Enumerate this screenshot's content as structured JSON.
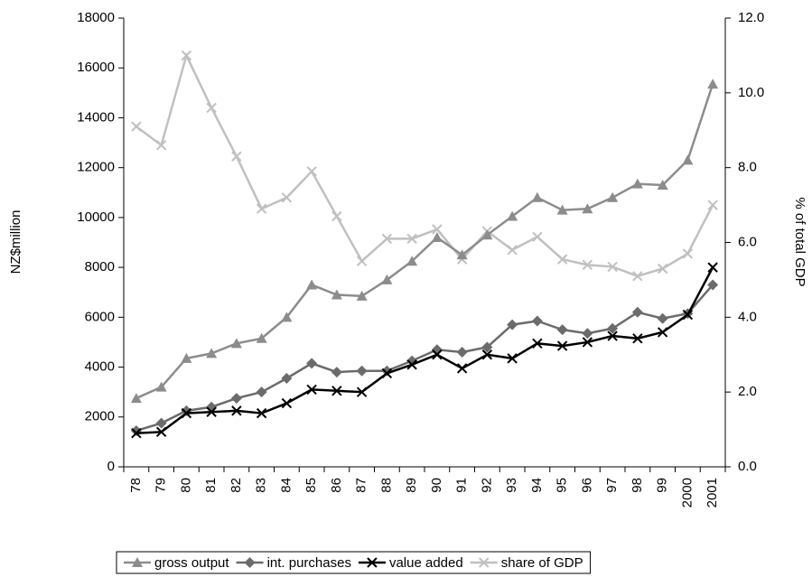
{
  "chart_data": {
    "type": "line",
    "y_label": "NZ$million",
    "y2_label": "% of total GDP",
    "categories": [
      "78",
      "79",
      "80",
      "81",
      "82",
      "83",
      "84",
      "85",
      "86",
      "87",
      "88",
      "89",
      "90",
      "91",
      "92",
      "93",
      "94",
      "95",
      "96",
      "97",
      "98",
      "99",
      "2000",
      "2001"
    ],
    "ylim": [
      0,
      18000
    ],
    "yticks": [
      0,
      2000,
      4000,
      6000,
      8000,
      10000,
      12000,
      14000,
      16000,
      18000
    ],
    "y2lim": [
      0,
      12
    ],
    "y2ticks": [
      {
        "value": 0,
        "label": "0.0"
      },
      {
        "value": 2,
        "label": "2.0"
      },
      {
        "value": 4,
        "label": "4.0"
      },
      {
        "value": 6,
        "label": "6.0"
      },
      {
        "value": 8,
        "label": "8.0"
      },
      {
        "value": 10,
        "label": "10.0"
      },
      {
        "value": 12,
        "label": "12.0"
      }
    ],
    "series": [
      {
        "name": "gross output",
        "color": "#8c8c8c",
        "marker": "triangle",
        "values": [
          2750,
          3200,
          4350,
          4550,
          4950,
          5150,
          6000,
          7300,
          6900,
          6850,
          7500,
          8250,
          9200,
          8500,
          9300,
          10050,
          10800,
          10300,
          10350,
          10800,
          11350,
          11300,
          12300,
          15350
        ]
      },
      {
        "name": "int. purchases",
        "color": "#6b6b6b",
        "marker": "diamond",
        "values": [
          1450,
          1750,
          2250,
          2400,
          2750,
          3000,
          3550,
          4150,
          3800,
          3850,
          3850,
          4250,
          4700,
          4600,
          4800,
          5700,
          5850,
          5500,
          5350,
          5550,
          6200,
          5950,
          6150,
          7300
        ]
      },
      {
        "name": "value added",
        "color": "#000000",
        "marker": "x",
        "values": [
          1350,
          1400,
          2150,
          2200,
          2250,
          2150,
          2550,
          3100,
          3050,
          3000,
          3750,
          4100,
          4500,
          3950,
          4500,
          4350,
          4950,
          4850,
          5000,
          5250,
          5150,
          5400,
          6100,
          8000
        ]
      },
      {
        "name": "share of GDP",
        "color": "#c0c0c0",
        "marker": "x",
        "axis": "y2",
        "values": [
          9.1,
          8.6,
          11.0,
          9.6,
          8.3,
          6.9,
          7.2,
          7.9,
          6.7,
          5.5,
          6.1,
          6.1,
          6.35,
          5.55,
          6.3,
          5.8,
          6.15,
          5.55,
          5.4,
          5.35,
          5.1,
          5.3,
          5.7,
          7.0
        ]
      }
    ]
  }
}
